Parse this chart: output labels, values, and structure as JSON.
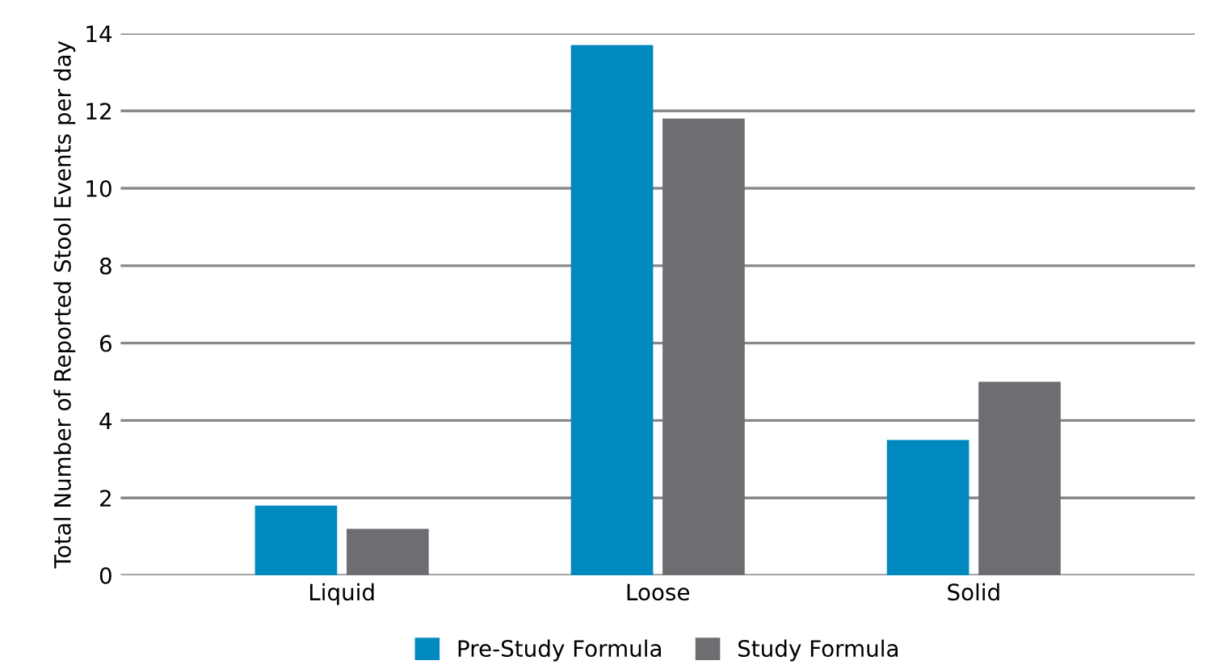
{
  "chart_data": {
    "type": "bar",
    "ylabel": "Total Number of Reported Stool Events per day",
    "categories": [
      "Liquid",
      "Loose",
      "Solid"
    ],
    "series": [
      {
        "name": "Pre-Study Formula",
        "color": "#0089bf",
        "values": [
          1.8,
          13.7,
          3.5
        ]
      },
      {
        "name": "Study Formula",
        "color": "#6d6e71",
        "values": [
          1.2,
          11.8,
          5.0
        ]
      }
    ],
    "ylim": [
      0,
      14
    ],
    "yticks": [
      0,
      2,
      4,
      6,
      8,
      10,
      12,
      14
    ],
    "grid": "y",
    "legend": "bottom"
  }
}
